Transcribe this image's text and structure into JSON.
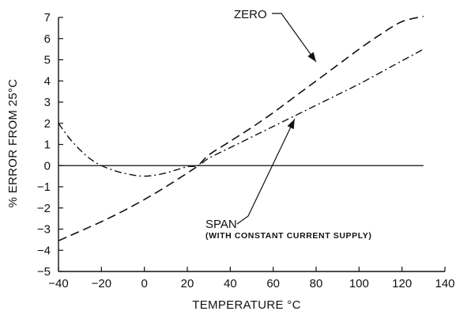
{
  "chart_data": {
    "type": "line",
    "xlabel": "TEMPERATURE °C",
    "ylabel": "% ERROR FROM 25°C",
    "xlim": [
      -40,
      140
    ],
    "ylim": [
      -5,
      7
    ],
    "x_ticks": [
      -40,
      -20,
      0,
      20,
      40,
      60,
      80,
      100,
      120,
      140
    ],
    "y_ticks": [
      -5,
      -4,
      -3,
      -2,
      -1,
      0,
      1,
      2,
      3,
      4,
      5,
      6,
      7
    ],
    "grid": false,
    "reference_line": {
      "y": 0,
      "x_range": [
        -40,
        130
      ]
    },
    "series": [
      {
        "name": "ZERO",
        "line_style": "dashed",
        "x": [
          -40,
          -30,
          -20,
          -10,
          0,
          10,
          20,
          25,
          30,
          40,
          50,
          60,
          70,
          80,
          90,
          100,
          110,
          120,
          130
        ],
        "y": [
          -3.55,
          -3.1,
          -2.65,
          -2.15,
          -1.6,
          -1.0,
          -0.35,
          0,
          0.5,
          1.15,
          1.8,
          2.5,
          3.25,
          4.0,
          4.75,
          5.5,
          6.2,
          6.8,
          7.05
        ]
      },
      {
        "name": "SPAN",
        "line_style": "dash-dot",
        "x": [
          -40,
          -35,
          -30,
          -25,
          -20,
          -15,
          -10,
          -5,
          0,
          5,
          10,
          15,
          20,
          25,
          30,
          40,
          50,
          60,
          70,
          80,
          90,
          100,
          110,
          120,
          130
        ],
        "y": [
          2.0,
          1.3,
          0.75,
          0.3,
          0.0,
          -0.2,
          -0.35,
          -0.45,
          -0.5,
          -0.45,
          -0.35,
          -0.2,
          -0.05,
          0,
          0.35,
          0.85,
          1.35,
          1.85,
          2.35,
          2.85,
          3.35,
          3.85,
          4.4,
          4.95,
          5.5
        ]
      }
    ],
    "annotations": [
      {
        "text": "ZERO",
        "points_to": {
          "x": 80,
          "y": 4.9
        }
      },
      {
        "text": "SPAN",
        "subtext": "(WITH CONSTANT CURRENT SUPPLY)",
        "points_to": {
          "x": 70,
          "y": 2.2
        }
      }
    ]
  }
}
